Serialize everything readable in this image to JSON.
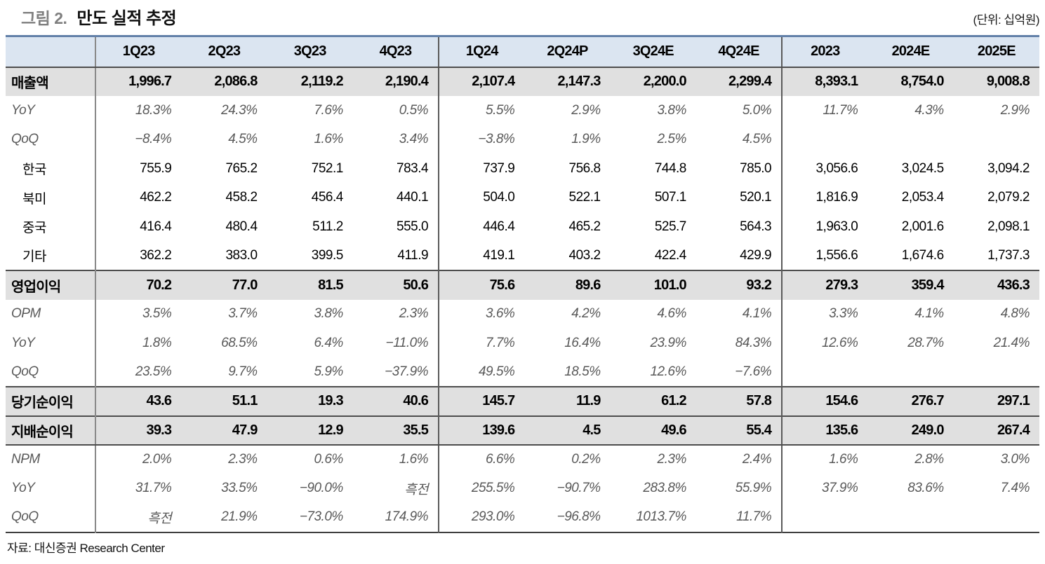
{
  "title": {
    "prefix": "그림 2.",
    "text": "만도 실적 추정"
  },
  "unit_note": "(단위: 십억원)",
  "source": "자료: 대신증권 Research Center",
  "colors": {
    "header_bg": "#dbe5f1",
    "highlight_row_bg": "#e0e0e0",
    "table_top_border": "#6280a8",
    "dark_rule": "#4d4d4d",
    "label_divider": "#8a8a8a",
    "muted_italic_text": "#595959",
    "title_prefix_gray": "#7f7f7f"
  },
  "chart_data": {
    "type": "table",
    "title": "만도 실적 추정",
    "unit": "십억원",
    "columns": [
      "",
      "1Q23",
      "2Q23",
      "3Q23",
      "4Q23",
      "1Q24",
      "2Q24P",
      "3Q24E",
      "4Q24E",
      "2023",
      "2024E",
      "2025E"
    ],
    "divider_after": [
      0,
      4,
      8
    ],
    "rows": [
      {
        "label": "매출액",
        "style": "highlight",
        "lines": "",
        "values": [
          "1,996.7",
          "2,086.8",
          "2,119.2",
          "2,190.4",
          "2,107.4",
          "2,147.3",
          "2,200.0",
          "2,299.4",
          "8,393.1",
          "8,754.0",
          "9,008.8"
        ]
      },
      {
        "label": "YoY",
        "style": "pct",
        "lines": "",
        "values": [
          "18.3%",
          "24.3%",
          "7.6%",
          "0.5%",
          "5.5%",
          "2.9%",
          "3.8%",
          "5.0%",
          "11.7%",
          "4.3%",
          "2.9%"
        ]
      },
      {
        "label": "QoQ",
        "style": "pct",
        "lines": "",
        "values": [
          "−8.4%",
          "4.5%",
          "1.6%",
          "3.4%",
          "−3.8%",
          "1.9%",
          "2.5%",
          "4.5%",
          "",
          "",
          ""
        ]
      },
      {
        "label": "한국",
        "style": "region",
        "lines": "",
        "values": [
          "755.9",
          "765.2",
          "752.1",
          "783.4",
          "737.9",
          "756.8",
          "744.8",
          "785.0",
          "3,056.6",
          "3,024.5",
          "3,094.2"
        ]
      },
      {
        "label": "북미",
        "style": "region",
        "lines": "",
        "values": [
          "462.2",
          "458.2",
          "456.4",
          "440.1",
          "504.0",
          "522.1",
          "507.1",
          "520.1",
          "1,816.9",
          "2,053.4",
          "2,079.2"
        ]
      },
      {
        "label": "중국",
        "style": "region",
        "lines": "",
        "values": [
          "416.4",
          "480.4",
          "511.2",
          "555.0",
          "446.4",
          "465.2",
          "525.7",
          "564.3",
          "1,963.0",
          "2,001.6",
          "2,098.1"
        ]
      },
      {
        "label": "기타",
        "style": "region",
        "lines": "",
        "values": [
          "362.2",
          "383.0",
          "399.5",
          "411.9",
          "419.1",
          "403.2",
          "422.4",
          "429.9",
          "1,556.6",
          "1,674.6",
          "1,737.3"
        ]
      },
      {
        "label": "영업이익",
        "style": "highlight",
        "lines": "top",
        "values": [
          "70.2",
          "77.0",
          "81.5",
          "50.6",
          "75.6",
          "89.6",
          "101.0",
          "93.2",
          "279.3",
          "359.4",
          "436.3"
        ]
      },
      {
        "label": "OPM",
        "style": "pct",
        "lines": "",
        "values": [
          "3.5%",
          "3.7%",
          "3.8%",
          "2.3%",
          "3.6%",
          "4.2%",
          "4.6%",
          "4.1%",
          "3.3%",
          "4.1%",
          "4.8%"
        ]
      },
      {
        "label": "YoY",
        "style": "pct",
        "lines": "",
        "values": [
          "1.8%",
          "68.5%",
          "6.4%",
          "−11.0%",
          "7.7%",
          "16.4%",
          "23.9%",
          "84.3%",
          "12.6%",
          "28.7%",
          "21.4%"
        ]
      },
      {
        "label": "QoQ",
        "style": "pct",
        "lines": "",
        "values": [
          "23.5%",
          "9.7%",
          "5.9%",
          "−37.9%",
          "49.5%",
          "18.5%",
          "12.6%",
          "−7.6%",
          "",
          "",
          ""
        ]
      },
      {
        "label": "당기순이익",
        "style": "highlight",
        "lines": "top",
        "values": [
          "43.6",
          "51.1",
          "19.3",
          "40.6",
          "145.7",
          "11.9",
          "61.2",
          "57.8",
          "154.6",
          "276.7",
          "297.1"
        ]
      },
      {
        "label": "지배순이익",
        "style": "highlight",
        "lines": "top bottom",
        "values": [
          "39.3",
          "47.9",
          "12.9",
          "35.5",
          "139.6",
          "4.5",
          "49.6",
          "55.4",
          "135.6",
          "249.0",
          "267.4"
        ]
      },
      {
        "label": "NPM",
        "style": "pct",
        "lines": "",
        "values": [
          "2.0%",
          "2.3%",
          "0.6%",
          "1.6%",
          "6.6%",
          "0.2%",
          "2.3%",
          "2.4%",
          "1.6%",
          "2.8%",
          "3.0%"
        ]
      },
      {
        "label": "YoY",
        "style": "pct",
        "lines": "",
        "values": [
          "31.7%",
          "33.5%",
          "−90.0%",
          "흑전",
          "255.5%",
          "−90.7%",
          "283.8%",
          "55.9%",
          "37.9%",
          "83.6%",
          "7.4%"
        ]
      },
      {
        "label": "QoQ",
        "style": "pct",
        "lines": "",
        "values": [
          "흑전",
          "21.9%",
          "−73.0%",
          "174.9%",
          "293.0%",
          "−96.8%",
          "1013.7%",
          "11.7%",
          "",
          "",
          ""
        ]
      }
    ]
  }
}
